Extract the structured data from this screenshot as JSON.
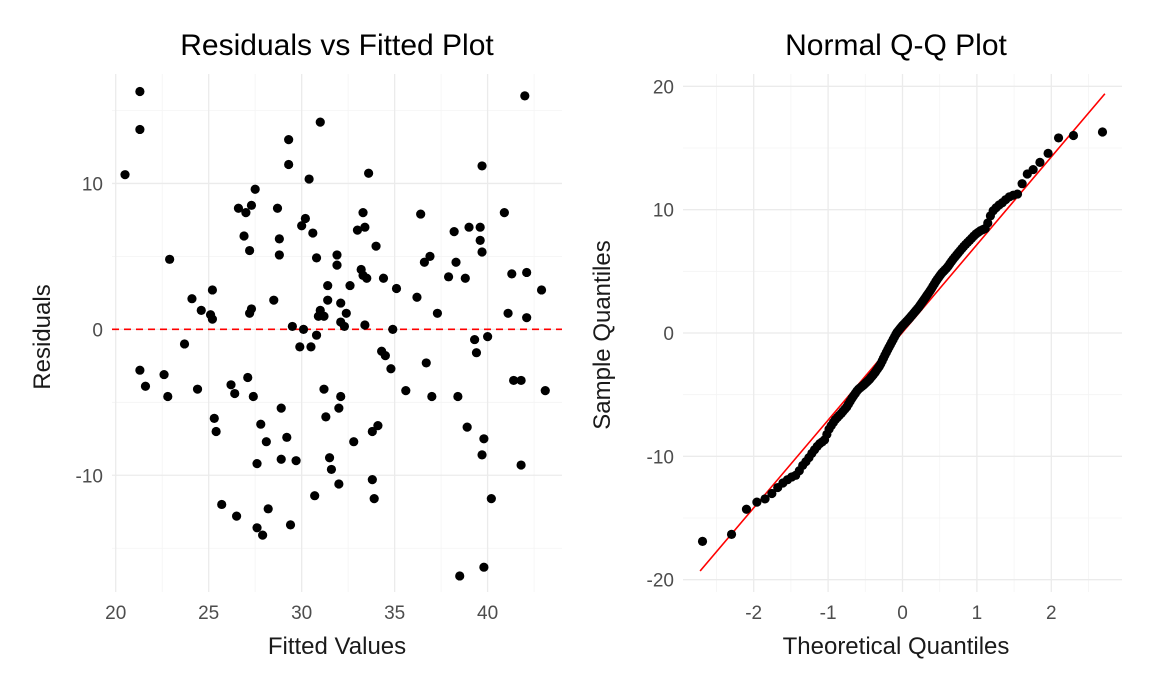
{
  "colors": {
    "points": "#000000",
    "reference_line": "#ff0000",
    "grid": "#ebebeb"
  },
  "chart_data": [
    {
      "type": "scatter",
      "title": "Residuals vs Fitted Plot",
      "xlabel": "Fitted Values",
      "ylabel": "Residuals",
      "xlim": [
        19.8,
        44
      ],
      "ylim": [
        -18,
        17.5
      ],
      "x_ticks": [
        20,
        25,
        30,
        35,
        40
      ],
      "x_tick_labels": [
        "20",
        "25",
        "30",
        "35",
        "40"
      ],
      "y_ticks": [
        -10,
        0,
        10
      ],
      "y_tick_labels": [
        "-10",
        "0",
        "10"
      ],
      "grid": true,
      "reference_line": {
        "y": 0,
        "style": "dashed",
        "color": "#ff0000"
      },
      "points": [
        [
          20.5,
          10.6
        ],
        [
          21.3,
          16.3
        ],
        [
          21.3,
          13.7
        ],
        [
          21.3,
          -2.8
        ],
        [
          21.6,
          -3.9
        ],
        [
          22.6,
          -3.1
        ],
        [
          22.8,
          -4.6
        ],
        [
          22.9,
          4.8
        ],
        [
          23.7,
          -1.0
        ],
        [
          24.1,
          2.1
        ],
        [
          24.4,
          -4.1
        ],
        [
          24.6,
          1.3
        ],
        [
          25.1,
          1.0
        ],
        [
          25.2,
          2.7
        ],
        [
          25.2,
          0.7
        ],
        [
          25.3,
          -6.1
        ],
        [
          25.4,
          -7.0
        ],
        [
          25.7,
          -12.0
        ],
        [
          26.2,
          -3.8
        ],
        [
          26.4,
          -4.4
        ],
        [
          26.5,
          -12.8
        ],
        [
          26.6,
          8.3
        ],
        [
          26.9,
          6.4
        ],
        [
          27.0,
          8.0
        ],
        [
          27.1,
          -3.3
        ],
        [
          27.2,
          5.4
        ],
        [
          27.2,
          1.1
        ],
        [
          27.3,
          8.5
        ],
        [
          27.3,
          1.4
        ],
        [
          27.4,
          -4.6
        ],
        [
          27.5,
          9.6
        ],
        [
          27.6,
          -9.2
        ],
        [
          27.6,
          -13.6
        ],
        [
          27.8,
          -6.5
        ],
        [
          27.9,
          -14.1
        ],
        [
          28.1,
          -7.7
        ],
        [
          28.2,
          -12.3
        ],
        [
          28.5,
          2.0
        ],
        [
          28.7,
          8.3
        ],
        [
          28.8,
          5.1
        ],
        [
          28.8,
          6.2
        ],
        [
          28.9,
          -5.4
        ],
        [
          28.9,
          -8.9
        ],
        [
          29.2,
          -7.4
        ],
        [
          29.3,
          13.0
        ],
        [
          29.3,
          11.3
        ],
        [
          29.4,
          -13.4
        ],
        [
          29.5,
          0.2
        ],
        [
          29.7,
          -9.0
        ],
        [
          29.9,
          -1.2
        ],
        [
          30.0,
          7.1
        ],
        [
          30.1,
          0.0
        ],
        [
          30.2,
          7.6
        ],
        [
          30.4,
          10.3
        ],
        [
          30.5,
          -1.2
        ],
        [
          30.6,
          6.6
        ],
        [
          30.7,
          -11.4
        ],
        [
          30.8,
          -0.4
        ],
        [
          30.8,
          4.9
        ],
        [
          30.9,
          0.9
        ],
        [
          31.0,
          14.2
        ],
        [
          31.0,
          1.3
        ],
        [
          31.2,
          -4.1
        ],
        [
          31.2,
          0.9
        ],
        [
          31.3,
          -6.0
        ],
        [
          31.4,
          2.0
        ],
        [
          31.4,
          3.0
        ],
        [
          31.5,
          -8.8
        ],
        [
          31.6,
          -9.6
        ],
        [
          31.9,
          4.4
        ],
        [
          31.9,
          5.1
        ],
        [
          32.0,
          -10.6
        ],
        [
          32.0,
          -5.4
        ],
        [
          32.1,
          -4.6
        ],
        [
          32.1,
          1.8
        ],
        [
          32.1,
          0.5
        ],
        [
          32.3,
          0.2
        ],
        [
          32.4,
          1.1
        ],
        [
          32.6,
          3.0
        ],
        [
          32.8,
          -7.7
        ],
        [
          33.0,
          6.8
        ],
        [
          33.2,
          4.1
        ],
        [
          33.3,
          3.7
        ],
        [
          33.3,
          8.0
        ],
        [
          33.4,
          7.0
        ],
        [
          33.4,
          0.3
        ],
        [
          33.5,
          3.5
        ],
        [
          33.6,
          10.7
        ],
        [
          33.8,
          -10.3
        ],
        [
          33.8,
          -7.0
        ],
        [
          33.9,
          -11.6
        ],
        [
          34.0,
          5.7
        ],
        [
          34.1,
          -6.6
        ],
        [
          34.3,
          -1.5
        ],
        [
          34.4,
          3.5
        ],
        [
          34.5,
          -1.8
        ],
        [
          34.8,
          -2.7
        ],
        [
          34.9,
          0.0
        ],
        [
          35.1,
          2.8
        ],
        [
          35.6,
          -4.2
        ],
        [
          36.2,
          2.2
        ],
        [
          36.4,
          7.9
        ],
        [
          36.6,
          4.6
        ],
        [
          36.7,
          -2.3
        ],
        [
          36.9,
          5.0
        ],
        [
          37.0,
          -4.6
        ],
        [
          37.3,
          1.1
        ],
        [
          37.9,
          3.6
        ],
        [
          38.2,
          6.7
        ],
        [
          38.3,
          4.6
        ],
        [
          38.4,
          -4.6
        ],
        [
          38.5,
          -16.9
        ],
        [
          38.8,
          3.5
        ],
        [
          38.9,
          -6.7
        ],
        [
          39.0,
          7.0
        ],
        [
          39.3,
          -0.7
        ],
        [
          39.4,
          -1.6
        ],
        [
          39.6,
          7.0
        ],
        [
          39.6,
          6.1
        ],
        [
          39.7,
          11.2
        ],
        [
          39.7,
          5.3
        ],
        [
          39.7,
          -8.6
        ],
        [
          39.8,
          -7.5
        ],
        [
          39.8,
          -16.3
        ],
        [
          40.0,
          -0.5
        ],
        [
          40.2,
          -11.6
        ],
        [
          40.9,
          8.0
        ],
        [
          41.1,
          1.1
        ],
        [
          41.3,
          3.8
        ],
        [
          41.4,
          -3.5
        ],
        [
          41.8,
          -9.3
        ],
        [
          41.8,
          -3.5
        ],
        [
          42.0,
          16.0
        ],
        [
          42.1,
          0.8
        ],
        [
          42.1,
          3.9
        ],
        [
          42.9,
          2.7
        ],
        [
          43.1,
          -4.2
        ]
      ]
    },
    {
      "type": "scatter",
      "title": "Normal Q-Q Plot",
      "xlabel": "Theoretical Quantiles",
      "ylabel": "Sample Quantiles",
      "xlim": [
        -2.95,
        2.95
      ],
      "ylim": [
        -21,
        21
      ],
      "x_ticks": [
        -2,
        -1,
        0,
        1,
        2
      ],
      "x_tick_labels": [
        "-2",
        "-1",
        "0",
        "1",
        "2"
      ],
      "y_ticks": [
        -20,
        -10,
        0,
        10,
        20
      ],
      "y_tick_labels": [
        "-20",
        "-10",
        "0",
        "10",
        "20"
      ],
      "grid": true,
      "reference_line": {
        "from": [
          -2.72,
          -19.3
        ],
        "to": [
          2.72,
          19.4
        ],
        "color": "#ff0000"
      },
      "quantile_points": {
        "n": 139,
        "x": [
          -2.69,
          -2.28,
          -2.08,
          -1.92,
          -1.82,
          -1.72,
          -1.64,
          -1.57,
          -1.5,
          -1.42,
          -1.35,
          -1.28,
          -1.2,
          -1.12,
          -1.05,
          -0.98,
          -0.9,
          -0.82,
          -0.75,
          -0.67,
          -0.6,
          -0.52,
          -0.45,
          -0.38,
          -0.3,
          -0.22,
          -0.15,
          -0.08,
          0.0,
          0.08,
          0.15,
          0.22,
          0.3,
          0.38,
          0.45,
          0.52,
          0.6,
          0.67,
          0.75,
          0.82,
          0.9,
          0.98,
          1.05,
          1.12,
          1.2,
          1.28,
          1.35,
          1.42,
          1.5,
          1.57,
          1.64,
          1.72,
          1.82,
          1.92,
          2.08,
          2.28,
          2.69
        ],
        "y": [
          -16.9,
          -16.3,
          -14.1,
          -13.6,
          -13.4,
          -12.8,
          -12.3,
          -12.0,
          -11.7,
          -11.5,
          -10.8,
          -10.3,
          -9.6,
          -9.0,
          -8.7,
          -7.7,
          -7.0,
          -6.5,
          -6.0,
          -5.2,
          -4.6,
          -4.2,
          -3.8,
          -3.3,
          -2.6,
          -1.6,
          -0.8,
          0.0,
          0.6,
          1.1,
          1.6,
          2.1,
          2.8,
          3.5,
          4.2,
          4.8,
          5.3,
          5.9,
          6.5,
          7.0,
          7.5,
          8.0,
          8.3,
          8.5,
          9.8,
          10.3,
          10.6,
          11.0,
          11.2,
          11.3,
          12.8,
          13.0,
          13.7,
          14.2,
          15.8,
          16.0,
          16.3
        ]
      }
    }
  ]
}
